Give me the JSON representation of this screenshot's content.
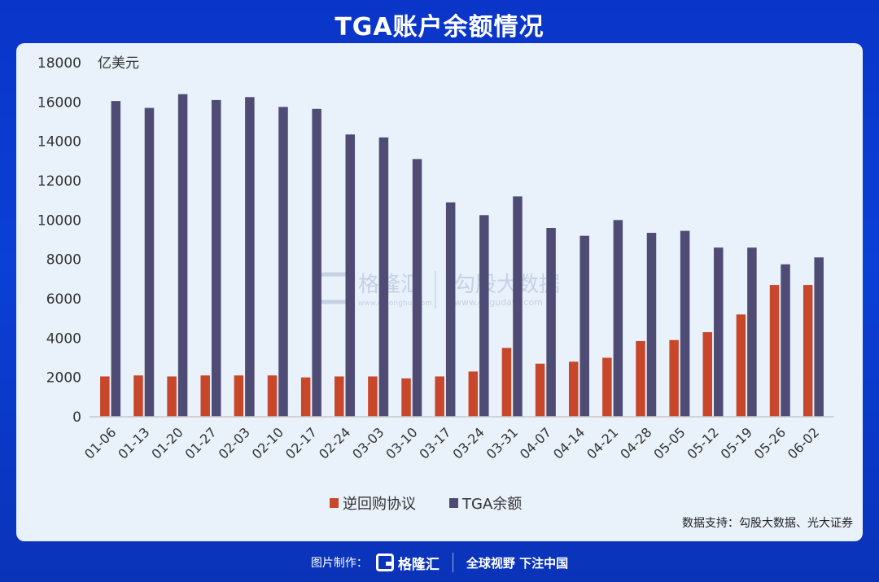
{
  "title": "TGA账户余额情况",
  "colors": {
    "reverse_repo": "#c8472b",
    "tga": "#4e4c75",
    "axis_text": "#333333"
  },
  "watermark": {
    "left_brand": "格隆汇",
    "left_url": "www.gelonghui.com",
    "right_brand": "勾股大数据",
    "right_url": "www.gogudata.com"
  },
  "source_note": "数据支持：勾股大数据、光大证券",
  "footer": {
    "label": "图片制作：",
    "logo_text": "格隆汇",
    "slogan": "全球视野 下注中国"
  },
  "chart_data": {
    "type": "bar",
    "title": "TGA账户余额情况",
    "ylabel": "亿美元",
    "xlabel": "",
    "ylim": [
      0,
      18000
    ],
    "yticks": [
      0,
      2000,
      4000,
      6000,
      8000,
      10000,
      12000,
      14000,
      16000,
      18000
    ],
    "grid": false,
    "legend": "bottom-center",
    "categories": [
      "01-06",
      "01-13",
      "01-20",
      "01-27",
      "02-03",
      "02-10",
      "02-17",
      "02-24",
      "03-03",
      "03-10",
      "03-17",
      "03-24",
      "03-31",
      "04-07",
      "04-14",
      "04-21",
      "04-28",
      "05-05",
      "05-12",
      "05-19",
      "05-26",
      "06-02"
    ],
    "series": [
      {
        "name": "逆回购协议",
        "color": "#c8472b",
        "values": [
          2050,
          2100,
          2050,
          2100,
          2100,
          2100,
          2000,
          2050,
          2050,
          1950,
          2050,
          2300,
          3500,
          2700,
          2800,
          3000,
          3850,
          3900,
          4300,
          5200,
          6700,
          6700
        ]
      },
      {
        "name": "TGA余额",
        "color": "#4e4c75",
        "values": [
          16050,
          15700,
          16400,
          16100,
          16250,
          15750,
          15650,
          14350,
          14200,
          13100,
          10900,
          10250,
          11200,
          9600,
          9200,
          10000,
          9350,
          9450,
          8600,
          8600,
          7750,
          8100
        ]
      }
    ]
  }
}
